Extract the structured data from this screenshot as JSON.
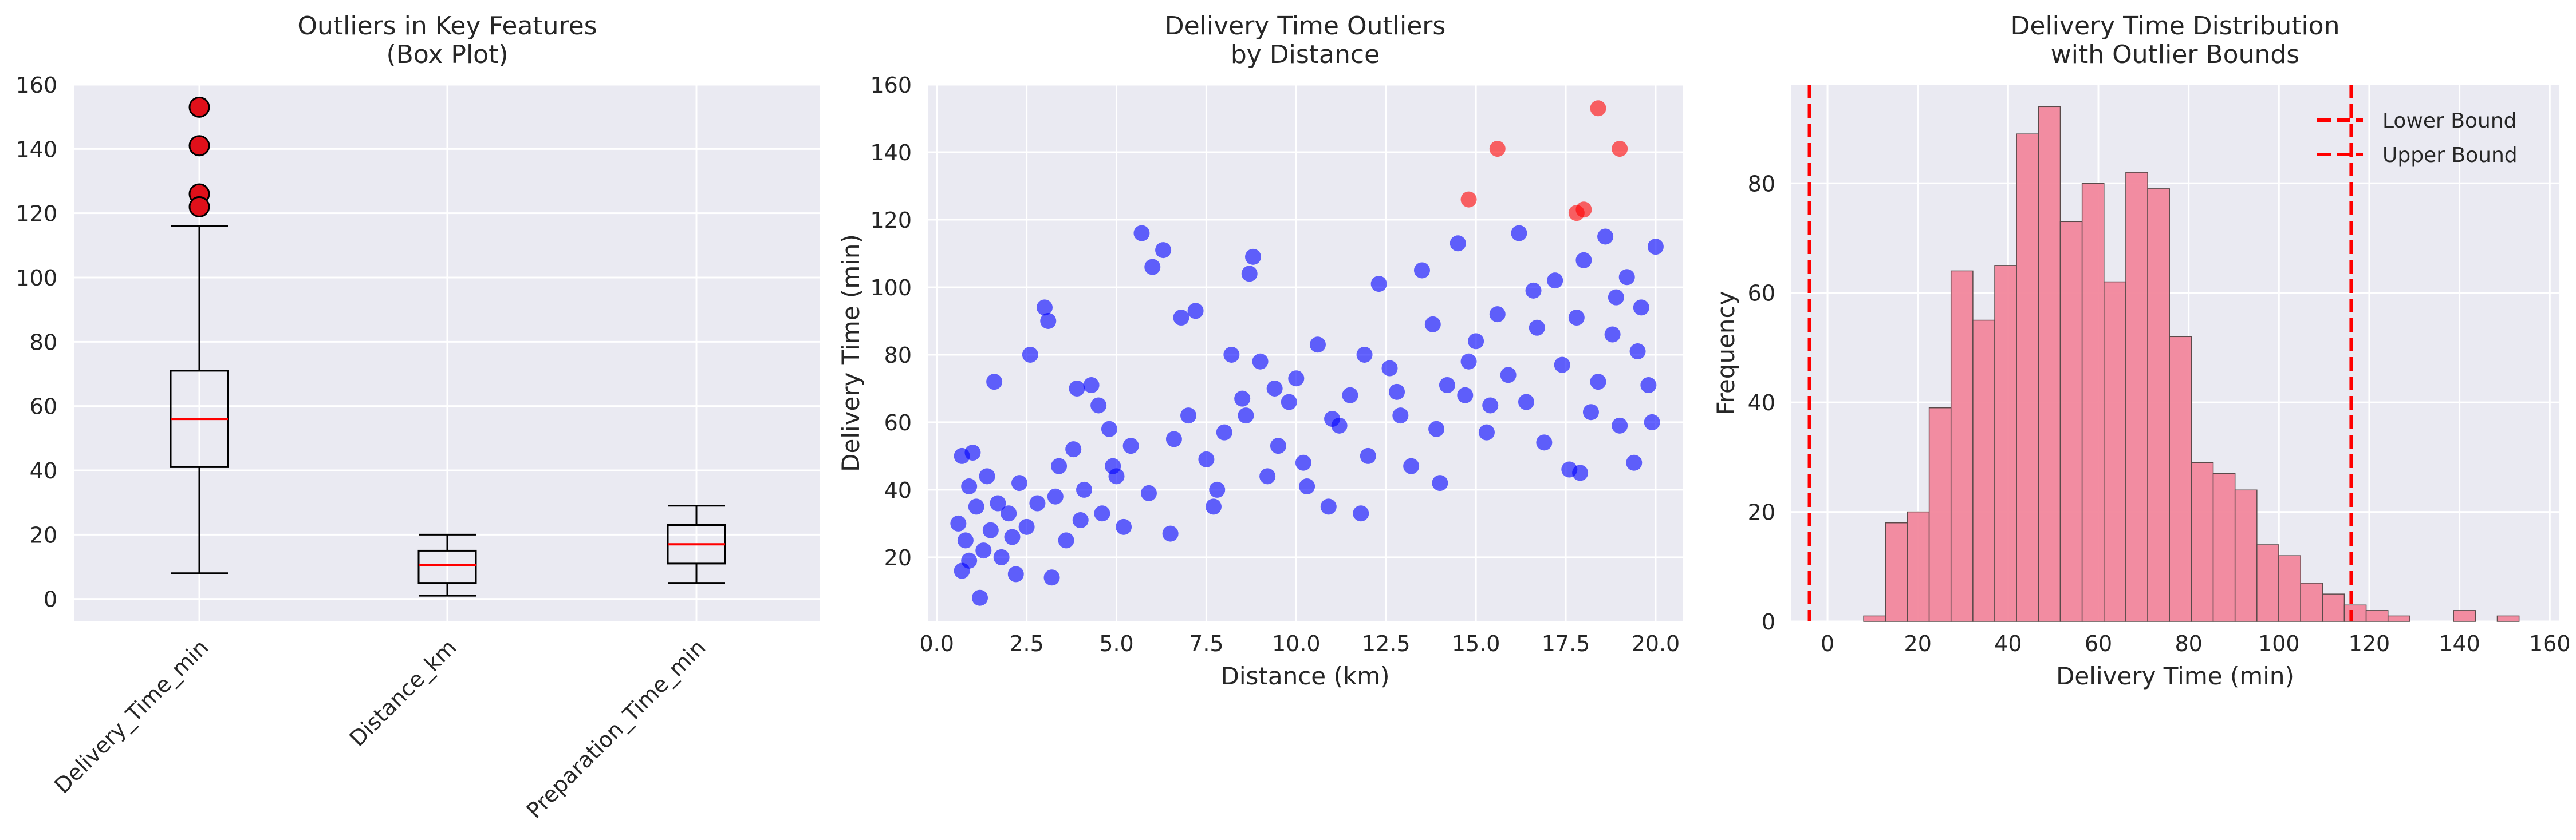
{
  "chart_data": [
    {
      "type": "box",
      "title": "Outliers in Key Features\n(Box Plot)",
      "categories": [
        "Delivery_Time_min",
        "Distance_km",
        "Preparation_Time_min"
      ],
      "ylim": [
        -7,
        160
      ],
      "yticks": [
        0,
        20,
        40,
        60,
        80,
        100,
        120,
        140,
        160
      ],
      "boxes": [
        {
          "whisker_low": 8,
          "q1": 41,
          "median": 56,
          "q3": 71,
          "whisker_high": 116,
          "outliers": [
            153,
            141,
            126,
            122
          ]
        },
        {
          "whisker_low": 1,
          "q1": 5,
          "median": 10.5,
          "q3": 15,
          "whisker_high": 20,
          "outliers": []
        },
        {
          "whisker_low": 5,
          "q1": 11,
          "median": 17,
          "q3": 23,
          "whisker_high": 29,
          "outliers": []
        }
      ],
      "colors": {
        "median": "#ff0000",
        "outlier_fill": "#e0101a",
        "box": "#000000"
      },
      "grid": true
    },
    {
      "type": "scatter",
      "title": "Delivery Time Outliers\nby Distance",
      "xlabel": "Distance (km)",
      "ylabel": "Delivery Time (min)",
      "xlim": [
        -0.25,
        20.75
      ],
      "ylim": [
        1,
        160
      ],
      "xticks": [
        0.0,
        2.5,
        5.0,
        7.5,
        10.0,
        12.5,
        15.0,
        17.5,
        20.0
      ],
      "yticks": [
        20,
        40,
        60,
        80,
        100,
        120,
        140,
        160
      ],
      "series": [
        {
          "color": "#0000ff",
          "points": [
            [
              0.6,
              30
            ],
            [
              0.7,
              16
            ],
            [
              0.8,
              25
            ],
            [
              0.9,
              41
            ],
            [
              1.0,
              51
            ],
            [
              1.2,
              8
            ],
            [
              0.7,
              50
            ],
            [
              1.1,
              35
            ],
            [
              1.3,
              22
            ],
            [
              1.5,
              28
            ],
            [
              1.4,
              44
            ],
            [
              1.6,
              72
            ],
            [
              1.8,
              20
            ],
            [
              2.0,
              33
            ],
            [
              2.2,
              15
            ],
            [
              2.3,
              42
            ],
            [
              2.5,
              29
            ],
            [
              2.6,
              80
            ],
            [
              2.8,
              36
            ],
            [
              3.0,
              94
            ],
            [
              3.1,
              90
            ],
            [
              3.2,
              14
            ],
            [
              3.4,
              47
            ],
            [
              3.6,
              25
            ],
            [
              3.8,
              52
            ],
            [
              3.9,
              70
            ],
            [
              4.1,
              40
            ],
            [
              4.3,
              71
            ],
            [
              4.5,
              65
            ],
            [
              4.6,
              33
            ],
            [
              4.8,
              58
            ],
            [
              5.0,
              44
            ],
            [
              5.2,
              29
            ],
            [
              5.4,
              53
            ],
            [
              5.7,
              116
            ],
            [
              6.0,
              106
            ],
            [
              6.3,
              111
            ],
            [
              6.5,
              27
            ],
            [
              6.8,
              91
            ],
            [
              7.0,
              62
            ],
            [
              7.2,
              93
            ],
            [
              7.5,
              49
            ],
            [
              7.7,
              35
            ],
            [
              8.0,
              57
            ],
            [
              8.2,
              80
            ],
            [
              8.5,
              67
            ],
            [
              8.7,
              104
            ],
            [
              8.8,
              109
            ],
            [
              9.0,
              78
            ],
            [
              9.2,
              44
            ],
            [
              9.5,
              53
            ],
            [
              9.8,
              66
            ],
            [
              10.0,
              73
            ],
            [
              10.3,
              41
            ],
            [
              10.6,
              83
            ],
            [
              10.9,
              35
            ],
            [
              11.2,
              59
            ],
            [
              11.5,
              68
            ],
            [
              11.8,
              33
            ],
            [
              12.0,
              50
            ],
            [
              12.3,
              101
            ],
            [
              12.6,
              76
            ],
            [
              12.9,
              62
            ],
            [
              13.2,
              47
            ],
            [
              13.5,
              105
            ],
            [
              13.8,
              89
            ],
            [
              14.0,
              42
            ],
            [
              14.2,
              71
            ],
            [
              14.5,
              113
            ],
            [
              14.7,
              68
            ],
            [
              15.0,
              84
            ],
            [
              15.3,
              57
            ],
            [
              15.6,
              92
            ],
            [
              15.9,
              74
            ],
            [
              16.2,
              116
            ],
            [
              16.4,
              66
            ],
            [
              16.7,
              88
            ],
            [
              16.9,
              54
            ],
            [
              17.2,
              102
            ],
            [
              17.4,
              77
            ],
            [
              17.6,
              46
            ],
            [
              17.8,
              91
            ],
            [
              18.0,
              108
            ],
            [
              18.2,
              63
            ],
            [
              18.4,
              72
            ],
            [
              18.6,
              115
            ],
            [
              18.8,
              86
            ],
            [
              19.0,
              59
            ],
            [
              19.2,
              103
            ],
            [
              19.4,
              48
            ],
            [
              19.6,
              94
            ],
            [
              19.8,
              71
            ],
            [
              20.0,
              112
            ],
            [
              19.9,
              60
            ],
            [
              19.5,
              81
            ],
            [
              18.9,
              97
            ],
            [
              17.9,
              45
            ],
            [
              16.6,
              99
            ],
            [
              15.4,
              65
            ],
            [
              14.8,
              78
            ],
            [
              13.9,
              58
            ],
            [
              12.8,
              69
            ],
            [
              11.9,
              80
            ],
            [
              11.0,
              61
            ],
            [
              10.2,
              48
            ],
            [
              9.4,
              70
            ],
            [
              8.6,
              62
            ],
            [
              7.8,
              40
            ],
            [
              6.6,
              55
            ],
            [
              5.9,
              39
            ],
            [
              4.9,
              47
            ],
            [
              4.0,
              31
            ],
            [
              3.3,
              38
            ],
            [
              2.1,
              26
            ],
            [
              1.7,
              36
            ],
            [
              0.9,
              19
            ]
          ]
        },
        {
          "color": "#ff0000",
          "points": [
            [
              14.8,
              126
            ],
            [
              15.6,
              141
            ],
            [
              17.8,
              122
            ],
            [
              18.0,
              123
            ],
            [
              18.4,
              153
            ],
            [
              19.0,
              141
            ]
          ]
        }
      ],
      "grid": true
    },
    {
      "type": "histogram",
      "title": "Delivery Time Distribution\nwith Outlier Bounds",
      "xlabel": "Delivery Time (min)",
      "ylabel": "Frequency",
      "xlim": [
        -8,
        162
      ],
      "ylim": [
        0,
        98
      ],
      "xticks": [
        0,
        20,
        40,
        60,
        80,
        100,
        120,
        140,
        160
      ],
      "yticks": [
        0,
        20,
        40,
        60,
        80
      ],
      "bin_start": 8,
      "bin_width": 4.84,
      "counts": [
        1,
        18,
        20,
        39,
        64,
        55,
        65,
        89,
        94,
        73,
        80,
        62,
        82,
        79,
        52,
        29,
        27,
        24,
        14,
        12,
        7,
        5,
        3,
        2,
        1,
        0,
        0,
        2,
        0,
        1
      ],
      "bounds": [
        {
          "name": "Lower Bound",
          "value": -4
        },
        {
          "name": "Upper Bound",
          "value": 116
        }
      ],
      "colors": {
        "bar": "#f2879c",
        "bound": "#ff0000"
      },
      "legend": "top-right",
      "grid": true
    }
  ]
}
